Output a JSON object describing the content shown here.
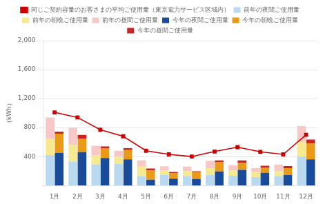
{
  "chart_data": {
    "type": "bar",
    "stacked": true,
    "grid": true,
    "legend": "top",
    "ylabel": "（kWh）",
    "categories": [
      "1月",
      "2月",
      "3月",
      "4月",
      "5月",
      "6月",
      "7月",
      "8月",
      "9月",
      "10月",
      "11月",
      "12月"
    ],
    "ylim": [
      0,
      2000
    ],
    "yticks": [
      400,
      800,
      {
        "value": 1200,
        "label": "1,200"
      },
      {
        "value": 1600,
        "label": "1,600"
      },
      {
        "value": 2000,
        "label": "2,000"
      }
    ],
    "series": [
      {
        "name": "前年の夜間ご使用量",
        "stack": "前年",
        "color": "#b8d9f0",
        "values": [
          420,
          330,
          290,
          300,
          130,
          145,
          125,
          145,
          135,
          115,
          125,
          400
        ]
      },
      {
        "name": "前年の朝晩ご使用量",
        "stack": "前年",
        "color": "#f5e992",
        "values": [
          230,
          230,
          130,
          100,
          130,
          65,
          75,
          95,
          75,
          70,
          75,
          200
        ]
      },
      {
        "name": "前年の昼間ご使用量",
        "stack": "前年",
        "color": "#f8c8c8",
        "values": [
          290,
          240,
          130,
          80,
          90,
          55,
          60,
          100,
          70,
          55,
          90,
          220
        ]
      },
      {
        "name": "今年の夜間ご使用量",
        "stack": "今年",
        "color": "#1a4a9a",
        "values": [
          450,
          460,
          380,
          360,
          80,
          95,
          90,
          195,
          215,
          175,
          145,
          360
        ]
      },
      {
        "name": "今年の朝晩ご使用量",
        "stack": "今年",
        "color": "#e89a18",
        "values": [
          265,
          185,
          135,
          130,
          130,
          75,
          95,
          125,
          95,
          75,
          95,
          220
        ]
      },
      {
        "name": "今年の昼間ご使用量",
        "stack": "今年",
        "color": "#cc2222",
        "values": [
          28,
          55,
          25,
          25,
          25,
          18,
          12,
          28,
          38,
          22,
          28,
          55
        ]
      },
      {
        "name": "同じご契約容量のお客さまの平均ご使用量（東京電力サービス区域内）",
        "type": "line",
        "marker": "square",
        "color": "#cc0000",
        "values": [
          1010,
          940,
          770,
          680,
          480,
          430,
          400,
          470,
          530,
          465,
          430,
          700
        ]
      }
    ]
  }
}
